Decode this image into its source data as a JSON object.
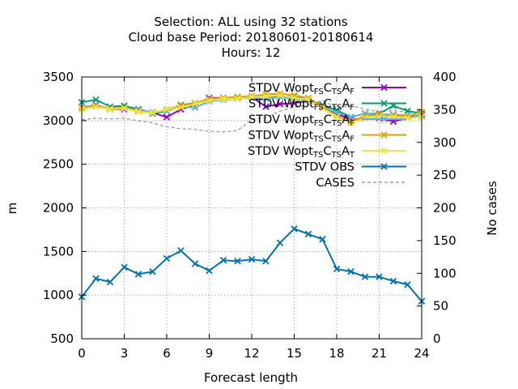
{
  "chart_data": {
    "type": "line",
    "title_lines": [
      "Selection: ALL using    32 stations",
      "Cloud base   Period: 20180601-20180614",
      "Hours:  12"
    ],
    "xlabel": "Forecast length",
    "ylabel": "m",
    "y2label": "No cases",
    "xlim": [
      0,
      24
    ],
    "ylim": [
      500,
      3500
    ],
    "y2lim": [
      0,
      400
    ],
    "xticks": [
      0,
      3,
      6,
      9,
      12,
      15,
      18,
      21,
      24
    ],
    "yticks": [
      500,
      1000,
      1500,
      2000,
      2500,
      3000,
      3500
    ],
    "y2ticks": [
      0,
      50,
      100,
      150,
      200,
      250,
      300,
      350,
      400
    ],
    "grid": true,
    "legend_position": "top-right",
    "x": [
      0,
      1,
      2,
      3,
      4,
      5,
      6,
      7,
      8,
      9,
      10,
      11,
      12,
      13,
      14,
      15,
      16,
      17,
      18,
      19,
      20,
      21,
      22,
      23,
      24
    ],
    "series": [
      {
        "name": "STDV Wopt_FS C_TS A_F",
        "legend": {
          "parts": [
            [
              "STDV Wopt",
              ""
            ],
            [
              "FS",
              "sub"
            ],
            [
              "C",
              ""
            ],
            [
              "TS",
              "sub"
            ],
            [
              "A",
              ""
            ],
            [
              "F",
              "sub"
            ]
          ]
        },
        "color": "#9400d3",
        "axis": "y",
        "marker": "x",
        "dash": "",
        "values": [
          3150,
          3180,
          3130,
          3130,
          3130,
          3090,
          3040,
          3130,
          3180,
          3260,
          3260,
          3260,
          3270,
          3160,
          3190,
          3200,
          3230,
          3170,
          3080,
          3010,
          3030,
          3030,
          2990,
          3030,
          3070
        ]
      },
      {
        "name": "STDV Wopt_FS C_TS A_F",
        "legend": {
          "parts": [
            [
              "STDV Wopt",
              ""
            ],
            [
              "FS",
              "sub"
            ],
            [
              "C",
              ""
            ],
            [
              "TS",
              "sub"
            ],
            [
              "A",
              ""
            ],
            [
              "F",
              "sub"
            ]
          ]
        },
        "color": "#009e73",
        "axis": "y",
        "marker": "x",
        "dash": "",
        "values": [
          3210,
          3240,
          3160,
          3170,
          3130,
          3080,
          3110,
          3180,
          3200,
          3240,
          3260,
          3270,
          3280,
          3280,
          3280,
          3270,
          3240,
          3180,
          3120,
          3040,
          3080,
          3080,
          3170,
          3110,
          3080
        ]
      },
      {
        "name": "STDV Wopt_FS C_TS A_F",
        "legend": {
          "parts": [
            [
              "STDV Wopt",
              ""
            ],
            [
              "FS",
              "sub"
            ],
            [
              "C",
              ""
            ],
            [
              "TS",
              "sub"
            ],
            [
              "A",
              ""
            ],
            [
              "F",
              "sub"
            ]
          ]
        },
        "color": "#56b4e9",
        "axis": "y",
        "marker": "x",
        "dash": "",
        "values": [
          3160,
          3170,
          3140,
          3140,
          3120,
          3100,
          3110,
          3160,
          3150,
          3220,
          3240,
          3250,
          3260,
          3250,
          3270,
          3250,
          3230,
          3160,
          3090,
          3040,
          3080,
          3070,
          3070,
          3060,
          3050
        ]
      },
      {
        "name": "STDV Wopt_TS C_TS A_F",
        "legend": {
          "parts": [
            [
              "STDV Wopt",
              ""
            ],
            [
              "TS",
              "sub"
            ],
            [
              "C",
              ""
            ],
            [
              "TS",
              "sub"
            ],
            [
              "A",
              ""
            ],
            [
              "F",
              "sub"
            ]
          ]
        },
        "color": "#e69f00",
        "axis": "y",
        "marker": "x",
        "dash": "",
        "values": [
          3150,
          3170,
          3140,
          3150,
          3110,
          3090,
          3130,
          3170,
          3200,
          3250,
          3260,
          3270,
          3280,
          3300,
          3310,
          3290,
          3260,
          3160,
          3050,
          2990,
          3050,
          3070,
          3060,
          3050,
          3100
        ]
      },
      {
        "name": "STDV Wopt_TS C_TS A_T",
        "legend": {
          "parts": [
            [
              "STDV Wopt",
              ""
            ],
            [
              "TS",
              "sub"
            ],
            [
              "C",
              ""
            ],
            [
              "TS",
              "sub"
            ],
            [
              "A",
              ""
            ],
            [
              "T",
              "sub"
            ]
          ]
        },
        "color": "#f0e442",
        "axis": "y",
        "marker": "x",
        "dash": "",
        "values": [
          3130,
          3160,
          3130,
          3140,
          3100,
          3090,
          3130,
          3150,
          3190,
          3230,
          3250,
          3250,
          3270,
          3280,
          3290,
          3260,
          3240,
          3140,
          3040,
          2970,
          3030,
          3040,
          3040,
          3030,
          3040
        ]
      },
      {
        "name": "STDV OBS",
        "legend": {
          "parts": [
            [
              "STDV OBS",
              ""
            ]
          ]
        },
        "color": "#0072b2",
        "axis": "y",
        "marker": "x",
        "dash": "",
        "values": [
          980,
          1190,
          1150,
          1320,
          1240,
          1270,
          1420,
          1510,
          1360,
          1280,
          1400,
          1390,
          1410,
          1390,
          1600,
          1760,
          1700,
          1640,
          1300,
          1270,
          1210,
          1210,
          1160,
          1120,
          930
        ]
      },
      {
        "name": "CASES",
        "legend": {
          "parts": [
            [
              "CASES",
              ""
            ]
          ]
        },
        "color": "#a0a0a0",
        "axis": "y2",
        "marker": "",
        "dash": "4,3",
        "values": [
          335,
          337,
          336,
          337,
          333,
          330,
          324,
          321,
          320,
          317,
          316,
          318,
          335,
          338,
          348,
          354,
          357,
          364,
          353,
          356,
          351,
          347,
          349,
          346,
          348
        ]
      }
    ]
  }
}
